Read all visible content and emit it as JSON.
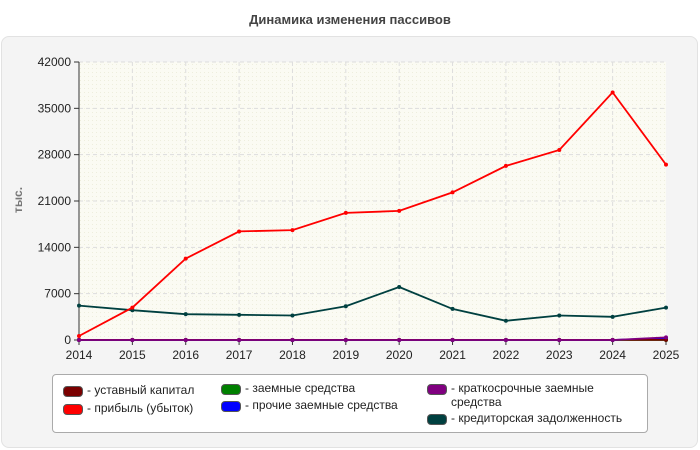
{
  "title": "Динамика изменения пассивов",
  "chart_data": {
    "type": "line",
    "title": "Динамика изменения пассивов",
    "xlabel": "",
    "ylabel": "тыс.",
    "x": [
      "2014",
      "2015",
      "2016",
      "2017",
      "2018",
      "2019",
      "2020",
      "2021",
      "2022",
      "2023",
      "2024",
      "2025"
    ],
    "ylim": [
      0,
      42000
    ],
    "yticks": [
      0,
      7000,
      14000,
      21000,
      28000,
      35000,
      42000
    ],
    "grid": true,
    "legend_position": "bottom",
    "series": [
      {
        "name": "- уставный капитал",
        "color": "#7a0000",
        "values": [
          10,
          10,
          10,
          10,
          10,
          10,
          10,
          10,
          10,
          10,
          10,
          10
        ]
      },
      {
        "name": "- прибыль (убыток)",
        "color": "#ff0000",
        "values": [
          600,
          4900,
          12300,
          16400,
          16600,
          19200,
          19500,
          22300,
          26300,
          28700,
          37400,
          26500
        ]
      },
      {
        "name": "- заемные средства",
        "color": "#008000",
        "values": [
          0,
          0,
          0,
          0,
          0,
          0,
          0,
          0,
          0,
          0,
          0,
          0
        ]
      },
      {
        "name": "- прочие заемные средства",
        "color": "#0000ff",
        "values": [
          0,
          0,
          0,
          0,
          0,
          0,
          0,
          0,
          0,
          0,
          0,
          300
        ]
      },
      {
        "name": "- краткосрочные заемные средства",
        "color": "#800080",
        "values": [
          0,
          0,
          0,
          0,
          0,
          0,
          0,
          0,
          0,
          0,
          0,
          400
        ]
      },
      {
        "name": "- кредиторская задолженность",
        "color": "#004040",
        "values": [
          5200,
          4500,
          3900,
          3800,
          3700,
          5100,
          8000,
          4700,
          2900,
          3700,
          3500,
          4900
        ]
      }
    ]
  }
}
